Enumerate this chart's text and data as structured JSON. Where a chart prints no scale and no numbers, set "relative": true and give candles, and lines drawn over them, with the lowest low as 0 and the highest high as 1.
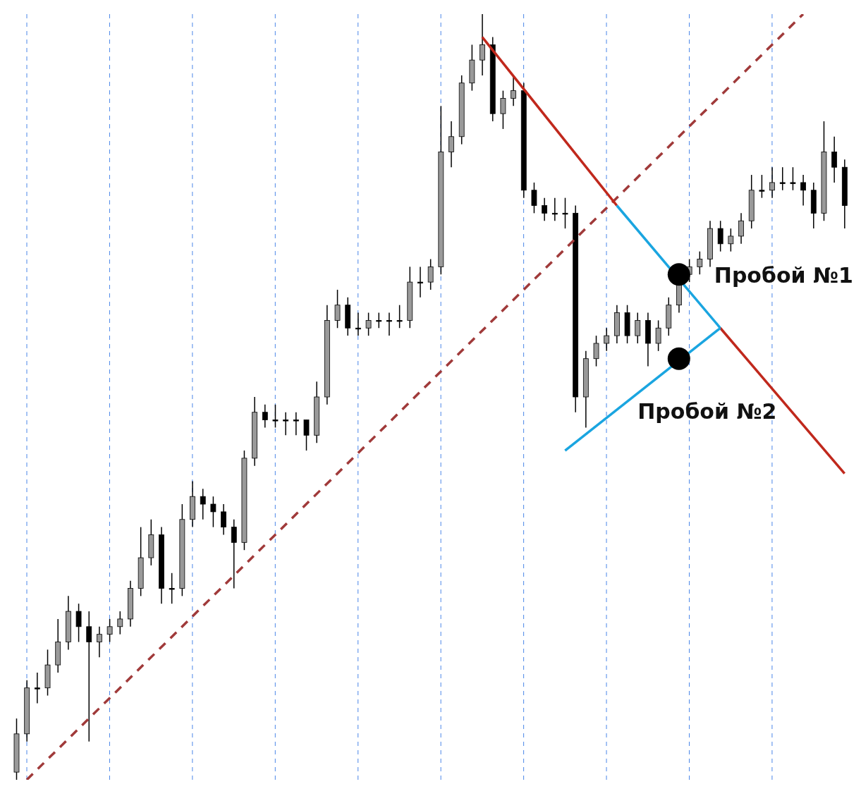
{
  "chart_data": {
    "type": "candlestick",
    "relative": true,
    "tick_labels": false,
    "grid": "x",
    "categories": [
      null,
      null,
      null,
      null,
      null,
      null,
      null,
      null,
      null,
      null,
      null,
      null,
      null,
      null,
      null,
      null,
      null,
      null,
      null,
      null,
      null,
      null,
      null,
      null,
      null,
      null,
      null,
      null,
      null,
      null,
      null,
      null,
      null,
      null,
      null,
      null,
      null,
      null,
      null,
      null,
      null,
      null,
      null,
      null,
      null,
      null,
      null,
      null,
      null,
      null,
      null,
      null,
      null,
      null,
      null,
      null,
      null,
      null,
      null,
      null,
      null,
      null,
      null,
      null,
      null,
      null,
      null,
      null,
      null,
      null,
      null,
      null,
      null,
      null,
      null,
      null,
      null,
      null,
      null,
      null,
      null
    ],
    "ohlc": [
      [
        0.01,
        0.08,
        0.0,
        0.06
      ],
      [
        0.06,
        0.13,
        0.05,
        0.12
      ],
      [
        0.12,
        0.14,
        0.1,
        0.12
      ],
      [
        0.12,
        0.17,
        0.11,
        0.15
      ],
      [
        0.15,
        0.21,
        0.14,
        0.18
      ],
      [
        0.18,
        0.24,
        0.17,
        0.22
      ],
      [
        0.22,
        0.23,
        0.18,
        0.2
      ],
      [
        0.2,
        0.22,
        0.05,
        0.18
      ],
      [
        0.18,
        0.2,
        0.16,
        0.19
      ],
      [
        0.19,
        0.21,
        0.18,
        0.2
      ],
      [
        0.2,
        0.22,
        0.19,
        0.21
      ],
      [
        0.21,
        0.26,
        0.2,
        0.25
      ],
      [
        0.25,
        0.33,
        0.24,
        0.29
      ],
      [
        0.29,
        0.34,
        0.28,
        0.32
      ],
      [
        0.32,
        0.33,
        0.23,
        0.25
      ],
      [
        0.25,
        0.27,
        0.23,
        0.25
      ],
      [
        0.25,
        0.36,
        0.24,
        0.34
      ],
      [
        0.34,
        0.39,
        0.33,
        0.37
      ],
      [
        0.37,
        0.38,
        0.34,
        0.36
      ],
      [
        0.36,
        0.37,
        0.33,
        0.35
      ],
      [
        0.35,
        0.36,
        0.32,
        0.33
      ],
      [
        0.33,
        0.34,
        0.25,
        0.31
      ],
      [
        0.31,
        0.43,
        0.3,
        0.42
      ],
      [
        0.42,
        0.5,
        0.41,
        0.48
      ],
      [
        0.48,
        0.49,
        0.46,
        0.47
      ],
      [
        0.47,
        0.49,
        0.46,
        0.47
      ],
      [
        0.47,
        0.48,
        0.45,
        0.47
      ],
      [
        0.47,
        0.48,
        0.45,
        0.47
      ],
      [
        0.47,
        0.47,
        0.43,
        0.45
      ],
      [
        0.45,
        0.52,
        0.44,
        0.5
      ],
      [
        0.5,
        0.62,
        0.49,
        0.6
      ],
      [
        0.6,
        0.64,
        0.59,
        0.62
      ],
      [
        0.62,
        0.63,
        0.58,
        0.59
      ],
      [
        0.59,
        0.61,
        0.58,
        0.59
      ],
      [
        0.59,
        0.61,
        0.58,
        0.6
      ],
      [
        0.6,
        0.61,
        0.59,
        0.6
      ],
      [
        0.6,
        0.61,
        0.58,
        0.6
      ],
      [
        0.6,
        0.62,
        0.59,
        0.6
      ],
      [
        0.6,
        0.67,
        0.59,
        0.65
      ],
      [
        0.65,
        0.67,
        0.63,
        0.65
      ],
      [
        0.65,
        0.68,
        0.64,
        0.67
      ],
      [
        0.67,
        0.88,
        0.66,
        0.82
      ],
      [
        0.82,
        0.86,
        0.8,
        0.84
      ],
      [
        0.84,
        0.92,
        0.83,
        0.91
      ],
      [
        0.91,
        0.96,
        0.9,
        0.94
      ],
      [
        0.94,
        1.0,
        0.92,
        0.96
      ],
      [
        0.96,
        0.97,
        0.86,
        0.87
      ],
      [
        0.87,
        0.9,
        0.85,
        0.89
      ],
      [
        0.89,
        0.92,
        0.88,
        0.9
      ],
      [
        0.9,
        0.91,
        0.76,
        0.77
      ],
      [
        0.77,
        0.78,
        0.74,
        0.75
      ],
      [
        0.75,
        0.76,
        0.73,
        0.74
      ],
      [
        0.74,
        0.76,
        0.73,
        0.74
      ],
      [
        0.74,
        0.76,
        0.72,
        0.74
      ],
      [
        0.74,
        0.75,
        0.48,
        0.5
      ],
      [
        0.5,
        0.56,
        0.46,
        0.55
      ],
      [
        0.55,
        0.58,
        0.54,
        0.57
      ],
      [
        0.57,
        0.59,
        0.56,
        0.58
      ],
      [
        0.58,
        0.62,
        0.57,
        0.61
      ],
      [
        0.61,
        0.62,
        0.57,
        0.58
      ],
      [
        0.58,
        0.61,
        0.57,
        0.6
      ],
      [
        0.6,
        0.61,
        0.54,
        0.57
      ],
      [
        0.57,
        0.6,
        0.56,
        0.59
      ],
      [
        0.59,
        0.63,
        0.58,
        0.62
      ],
      [
        0.62,
        0.67,
        0.61,
        0.66
      ],
      [
        0.66,
        0.68,
        0.65,
        0.67
      ],
      [
        0.67,
        0.69,
        0.66,
        0.68
      ],
      [
        0.68,
        0.73,
        0.67,
        0.72
      ],
      [
        0.72,
        0.73,
        0.69,
        0.7
      ],
      [
        0.7,
        0.72,
        0.69,
        0.71
      ],
      [
        0.71,
        0.74,
        0.7,
        0.73
      ],
      [
        0.73,
        0.79,
        0.72,
        0.77
      ],
      [
        0.77,
        0.79,
        0.76,
        0.77
      ],
      [
        0.77,
        0.8,
        0.76,
        0.78
      ],
      [
        0.78,
        0.8,
        0.77,
        0.78
      ],
      [
        0.78,
        0.8,
        0.77,
        0.78
      ],
      [
        0.78,
        0.79,
        0.75,
        0.77
      ],
      [
        0.77,
        0.78,
        0.72,
        0.74
      ],
      [
        0.74,
        0.86,
        0.73,
        0.82
      ],
      [
        0.82,
        0.84,
        0.78,
        0.8
      ],
      [
        0.8,
        0.81,
        0.72,
        0.75
      ]
    ],
    "series": [
      {
        "type": "line",
        "values": [
          null,
          0.0,
          null,
          null,
          null,
          null,
          null,
          null,
          null,
          null,
          null,
          null,
          null,
          null,
          null,
          null,
          null,
          null,
          null,
          null,
          null,
          null,
          null,
          null,
          null,
          null,
          null,
          null,
          null,
          null,
          null,
          null,
          null,
          null,
          null,
          null,
          null,
          null,
          null,
          null,
          null,
          null,
          null,
          null,
          null,
          null,
          null,
          null,
          null,
          null,
          null,
          null,
          null,
          null,
          null,
          null,
          null,
          null,
          null,
          null,
          null,
          null,
          null,
          null,
          null,
          null,
          null,
          null,
          null,
          null,
          null,
          null,
          null,
          null,
          null,
          null,
          1.0,
          null,
          null,
          null,
          null
        ],
        "color": "#a03a3a",
        "line_style": "dashed"
      },
      {
        "type": "line",
        "values": [
          null,
          null,
          null,
          null,
          null,
          null,
          null,
          null,
          null,
          null,
          null,
          null,
          null,
          null,
          null,
          null,
          null,
          null,
          null,
          null,
          null,
          null,
          null,
          null,
          null,
          null,
          null,
          null,
          null,
          null,
          null,
          null,
          null,
          null,
          null,
          null,
          null,
          null,
          null,
          null,
          null,
          null,
          null,
          null,
          null,
          0.97,
          null,
          null,
          null,
          null,
          null,
          null,
          null,
          null,
          null,
          null,
          null,
          null,
          0.75,
          null,
          null,
          null,
          null,
          null,
          null,
          null,
          null,
          null,
          null,
          null,
          null,
          null,
          null,
          null,
          null,
          null,
          null,
          null,
          null,
          null,
          null
        ],
        "color": "#c0281c",
        "line_style": "solid"
      },
      {
        "type": "line",
        "values": [
          null,
          null,
          null,
          null,
          null,
          null,
          null,
          null,
          null,
          null,
          null,
          null,
          null,
          null,
          null,
          null,
          null,
          null,
          null,
          null,
          null,
          null,
          null,
          null,
          null,
          null,
          null,
          null,
          null,
          null,
          null,
          null,
          null,
          null,
          null,
          null,
          null,
          null,
          null,
          null,
          null,
          null,
          null,
          null,
          null,
          null,
          null,
          null,
          null,
          null,
          null,
          null,
          null,
          null,
          null,
          null,
          null,
          null,
          0.75,
          null,
          null,
          null,
          null,
          null,
          null,
          null,
          null,
          null,
          0.59,
          null,
          null,
          null,
          null,
          null,
          null,
          null,
          null,
          null,
          null,
          null,
          null
        ],
        "color": "#1aa5e0",
        "line_style": "solid"
      },
      {
        "type": "line",
        "values": [
          null,
          null,
          null,
          null,
          null,
          null,
          null,
          null,
          null,
          null,
          null,
          null,
          null,
          null,
          null,
          null,
          null,
          null,
          null,
          null,
          null,
          null,
          null,
          null,
          null,
          null,
          null,
          null,
          null,
          null,
          null,
          null,
          null,
          null,
          null,
          null,
          null,
          null,
          null,
          null,
          null,
          null,
          null,
          null,
          null,
          null,
          null,
          null,
          null,
          null,
          null,
          null,
          null,
          null,
          null,
          null,
          null,
          null,
          null,
          null,
          null,
          null,
          null,
          null,
          null,
          null,
          null,
          null,
          0.59,
          null,
          null,
          null,
          null,
          null,
          null,
          null,
          null,
          null,
          null,
          null,
          0.4
        ],
        "color": "#c0281c",
        "line_style": "solid"
      },
      {
        "type": "line",
        "values": [
          null,
          null,
          null,
          null,
          null,
          null,
          null,
          null,
          null,
          null,
          null,
          null,
          null,
          null,
          null,
          null,
          null,
          null,
          null,
          null,
          null,
          null,
          null,
          null,
          null,
          null,
          null,
          null,
          null,
          null,
          null,
          null,
          null,
          null,
          null,
          null,
          null,
          null,
          null,
          null,
          null,
          null,
          null,
          null,
          null,
          null,
          null,
          null,
          null,
          null,
          null,
          null,
          null,
          0.43,
          null,
          null,
          null,
          null,
          null,
          null,
          null,
          null,
          null,
          null,
          null,
          null,
          null,
          null,
          0.59,
          null,
          null,
          null,
          null,
          null,
          null,
          null,
          null,
          null,
          null,
          null,
          null
        ],
        "color": "#1aa5e0",
        "line_style": "solid"
      },
      {
        "type": "scatter",
        "values": [
          null,
          null,
          null,
          null,
          null,
          null,
          null,
          null,
          null,
          null,
          null,
          null,
          null,
          null,
          null,
          null,
          null,
          null,
          null,
          null,
          null,
          null,
          null,
          null,
          null,
          null,
          null,
          null,
          null,
          null,
          null,
          null,
          null,
          null,
          null,
          null,
          null,
          null,
          null,
          null,
          null,
          null,
          null,
          null,
          null,
          null,
          null,
          null,
          null,
          null,
          null,
          null,
          null,
          null,
          null,
          null,
          null,
          null,
          null,
          null,
          null,
          null,
          null,
          null,
          0.66,
          null,
          null,
          null,
          null,
          null,
          null,
          null,
          null,
          null,
          null,
          null,
          null,
          null,
          null,
          null,
          null
        ],
        "color": "#000000",
        "marker": "circle"
      },
      {
        "type": "scatter",
        "values": [
          null,
          null,
          null,
          null,
          null,
          null,
          null,
          null,
          null,
          null,
          null,
          null,
          null,
          null,
          null,
          null,
          null,
          null,
          null,
          null,
          null,
          null,
          null,
          null,
          null,
          null,
          null,
          null,
          null,
          null,
          null,
          null,
          null,
          null,
          null,
          null,
          null,
          null,
          null,
          null,
          null,
          null,
          null,
          null,
          null,
          null,
          null,
          null,
          null,
          null,
          null,
          null,
          null,
          null,
          null,
          null,
          null,
          null,
          null,
          null,
          null,
          null,
          null,
          null,
          0.55,
          null,
          null,
          null,
          null,
          null,
          null,
          null,
          null,
          null,
          null,
          null,
          null,
          null,
          null,
          null,
          null
        ],
        "color": "#000000",
        "marker": "circle"
      }
    ],
    "annotations": [
      "Пробой №1",
      "Пробой №2"
    ]
  }
}
